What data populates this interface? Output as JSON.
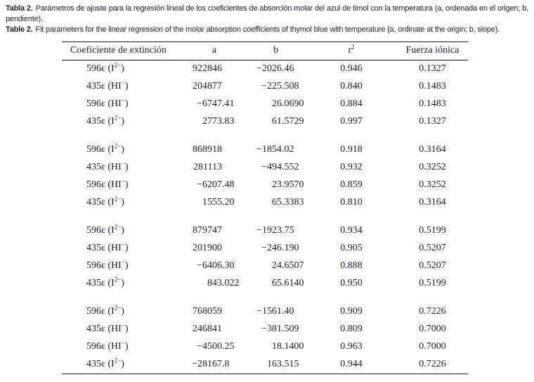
{
  "captions": {
    "es_label": "Tabla 2.",
    "es_text": "Parámetros de ajuste para la regresión lineal de los coeficientes de absorción molar del azul de timol con la temperatura (a, ordenada en el origen; b, pendiente).",
    "en_label": "Table 2.",
    "en_text": "Fit parameters for the linear regression of the molar absorption coefficients of thymol blue with temperature (a, ordinate at the origin; b, slope)."
  },
  "table": {
    "headers": {
      "col1": "Coeficiente de extinción",
      "a": "a",
      "b": "b",
      "r2_base": "r",
      "r2_sup": "2",
      "ionic": "Fuerza iónica"
    },
    "groups": [
      {
        "rows": [
          {
            "label_pre": "596ε (I",
            "label_sup": "2−",
            "label_post": ")",
            "a_int": "922846",
            "a_frac": "",
            "b_int": "−2026",
            "b_frac": ".46",
            "r2": "0.946",
            "ionic": "0.1327"
          },
          {
            "label_pre": "435ε (HI",
            "label_sup": "−",
            "label_post": ")",
            "a_int": "204877",
            "a_frac": "",
            "b_int": "−225",
            "b_frac": ".508",
            "r2": "0.840",
            "ionic": "0.1483"
          },
          {
            "label_pre": "596ε (HI",
            "label_sup": "−",
            "label_post": ")",
            "a_int": "−6747",
            "a_frac": ".41",
            "b_int": "26",
            "b_frac": ".0690",
            "r2": "0.884",
            "ionic": "0.1483"
          },
          {
            "label_pre": "435ε (I",
            "label_sup": "2−",
            "label_post": ")",
            "a_int": "2773",
            "a_frac": ".83",
            "b_int": "61",
            "b_frac": ".5729",
            "r2": "0.997",
            "ionic": "0.1327"
          }
        ]
      },
      {
        "rows": [
          {
            "label_pre": "596ε (I",
            "label_sup": "2−",
            "label_post": ")",
            "a_int": "868918",
            "a_frac": "",
            "b_int": "−1854",
            "b_frac": ".02",
            "r2": "0.918",
            "ionic": "0.3164"
          },
          {
            "label_pre": "435ε (HI",
            "label_sup": "−",
            "label_post": ")",
            "a_int": "281113",
            "a_frac": "",
            "b_int": "−494",
            "b_frac": ".552",
            "r2": "0.932",
            "ionic": "0.3252"
          },
          {
            "label_pre": "596ε (HI",
            "label_sup": "−",
            "label_post": ")",
            "a_int": "−6207",
            "a_frac": ".48",
            "b_int": "23",
            "b_frac": ".9570",
            "r2": "0.859",
            "ionic": "0.3252"
          },
          {
            "label_pre": "435ε (I",
            "label_sup": "2−",
            "label_post": ")",
            "a_int": "1555",
            "a_frac": ".20",
            "b_int": "65",
            "b_frac": ".3383",
            "r2": "0.810",
            "ionic": "0.3164"
          }
        ]
      },
      {
        "rows": [
          {
            "label_pre": "596ε  (I",
            "label_sup": "2−",
            "label_post": ")",
            "a_int": "879747",
            "a_frac": "",
            "b_int": "−1923",
            "b_frac": ".75",
            "r2": "0.934",
            "ionic": "0.5199"
          },
          {
            "label_pre": "435ε (HI",
            "label_sup": "−",
            "label_post": ")",
            "a_int": "201900",
            "a_frac": "",
            "b_int": "−246",
            "b_frac": ".190",
            "r2": "0.905",
            "ionic": "0.5207"
          },
          {
            "label_pre": "596ε (HI",
            "label_sup": "−",
            "label_post": ")",
            "a_int": "−6406",
            "a_frac": ".30",
            "b_int": "24",
            "b_frac": ".6507",
            "r2": "0.888",
            "ionic": "0.5207"
          },
          {
            "label_pre": "435ε (I",
            "label_sup": "2−",
            "label_post": ")",
            "a_int": "843",
            "a_frac": ".022",
            "b_int": "65",
            "b_frac": ".6140",
            "r2": "0.950",
            "ionic": "0.5199"
          }
        ]
      },
      {
        "rows": [
          {
            "label_pre": "596ε (I",
            "label_sup": "2−",
            "label_post": ")",
            "a_int": "768059",
            "a_frac": "",
            "b_int": "−1561",
            "b_frac": ".40",
            "r2": "0.909",
            "ionic": "0.7226"
          },
          {
            "label_pre": "435ε (HI",
            "label_sup": "−",
            "label_post": ")",
            "a_int": "246841",
            "a_frac": "",
            "b_int": "−381",
            "b_frac": ".509",
            "r2": "0.809",
            "ionic": "0.7000"
          },
          {
            "label_pre": "596ε (HI",
            "label_sup": "−",
            "label_post": ")",
            "a_int": "−4500",
            "a_frac": ".25",
            "b_int": "18",
            "b_frac": ".1400",
            "r2": "0.963",
            "ionic": "0.7000"
          },
          {
            "label_pre": "435ε (I",
            "label_sup": "2−",
            "label_post": ")",
            "a_int": "−28167",
            "a_frac": ".8",
            "b_int": "163",
            "b_frac": ".515",
            "r2": "0.944",
            "ionic": "0.7226"
          }
        ]
      }
    ]
  }
}
